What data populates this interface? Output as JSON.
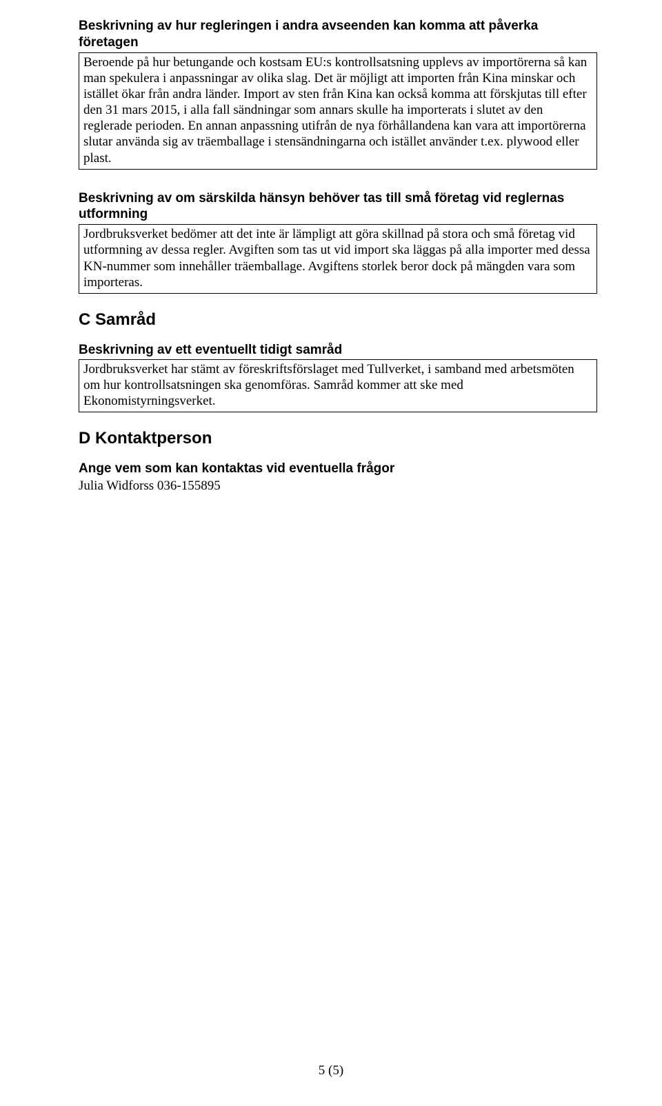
{
  "section1": {
    "heading": "Beskrivning av hur regleringen i andra avseenden kan komma att påverka företagen",
    "body": "Beroende på hur betungande och kostsam EU:s kontrollsatsning upplevs av importörerna så kan man spekulera i anpassningar av olika slag. Det är möjligt att importen från Kina minskar och istället ökar från andra länder. Import av sten från Kina kan också komma att förskjutas till efter den 31 mars 2015, i alla fall sändningar som annars skulle ha importerats i slutet av den reglerade perioden. En annan anpassning utifrån de nya förhållandena kan vara att importörerna slutar använda sig av träemballage i stensändningarna och istället använder t.ex. plywood eller plast."
  },
  "section2": {
    "heading": "Beskrivning av om särskilda hänsyn behöver tas till små företag vid reglernas utformning",
    "body": "Jordbruksverket bedömer att det inte är lämpligt att göra skillnad på stora och små företag vid utformning av dessa regler. Avgiften som tas ut vid import ska läggas på alla importer med dessa KN-nummer som innehåller träemballage. Avgiftens storlek beror dock på mängden vara som importeras."
  },
  "sectionC": {
    "letter": "C   Samråd",
    "subheading": "Beskrivning av ett eventuellt tidigt samråd",
    "body": "Jordbruksverket har stämt av föreskriftsförslaget med Tullverket, i samband med arbetsmöten om hur kontrollsatsningen ska genomföras. Samråd kommer att ske med Ekonomistyrningsverket."
  },
  "sectionD": {
    "letter": "D   Kontaktperson",
    "subheading": "Ange vem som kan kontaktas vid eventuella frågor",
    "contact": "Julia Widforss 036-155895"
  },
  "footer": "5 (5)"
}
